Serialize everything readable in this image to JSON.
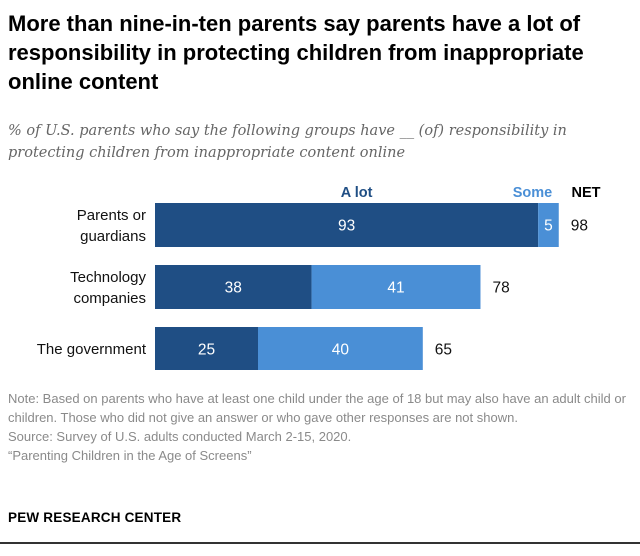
{
  "header": {
    "title": "More than nine-in-ten parents say parents have a lot of responsibility in protecting children from inappropriate online content",
    "subtitle": "% of U.S. parents who say the following groups have __ (of) responsibility in protecting children from inappropriate content online"
  },
  "chart_data": {
    "type": "bar",
    "orientation": "horizontal",
    "stacked": true,
    "categories": [
      [
        "Parents or",
        "guardians"
      ],
      [
        "Technology",
        "companies"
      ],
      [
        "The government"
      ]
    ],
    "series": [
      {
        "name": "A lot",
        "color": "#1f4e84",
        "label_color": "#1f4e84",
        "values": [
          93,
          38,
          25
        ]
      },
      {
        "name": "Some",
        "color": "#4a8fd6",
        "label_color": "#4a8fd6",
        "values": [
          5,
          41,
          40
        ]
      }
    ],
    "net": {
      "label": "NET",
      "values": [
        98,
        78,
        65
      ]
    },
    "xlim": [
      0,
      100
    ],
    "grid": false
  },
  "footer": {
    "note": "Note: Based on parents who have at least one child under the age of 18 but may also have an adult child or children. Those who did not give an answer or who gave other responses are not shown.",
    "source": "Source: Survey of U.S. adults conducted March 2-15, 2020.",
    "report": "“Parenting Children in the Age of Screens”",
    "brand": "PEW RESEARCH CENTER"
  }
}
